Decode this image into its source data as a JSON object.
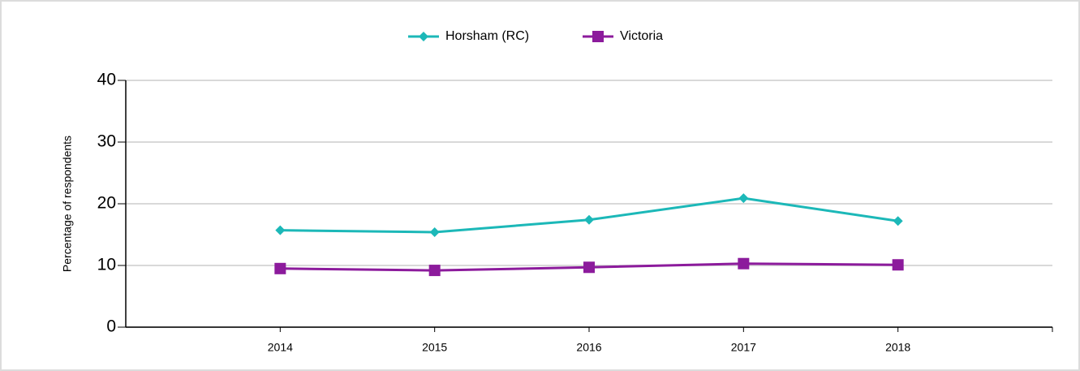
{
  "chart_data": {
    "type": "line",
    "categories": [
      "2014",
      "2015",
      "2016",
      "2017",
      "2018"
    ],
    "series": [
      {
        "name": "Horsham (RC)",
        "color": "#1cb8b8",
        "marker": "diamond",
        "values": [
          15.7,
          15.4,
          17.4,
          20.9,
          17.2
        ]
      },
      {
        "name": "Victoria",
        "color": "#8c1b9c",
        "marker": "square",
        "values": [
          9.5,
          9.2,
          9.7,
          10.3,
          10.1
        ]
      }
    ],
    "ylabel": "Percentage of respondents",
    "ylim": [
      0,
      40
    ],
    "yticks": [
      0,
      10,
      20,
      30,
      40
    ],
    "grid": true,
    "legend": "top"
  }
}
